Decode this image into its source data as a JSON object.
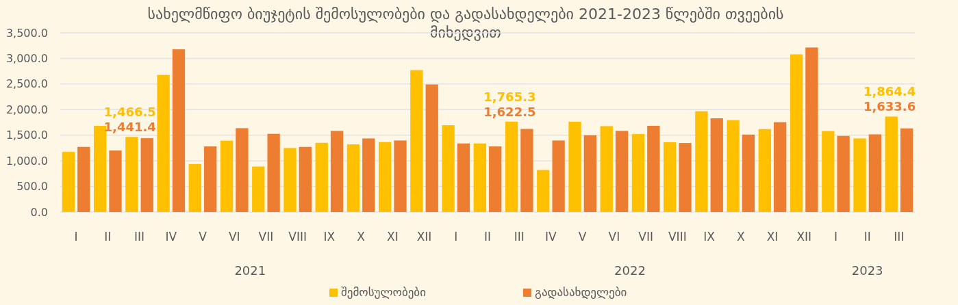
{
  "chart_data": {
    "type": "bar",
    "title": "სახელმწიფო ბიუჯეტის შემოსულობები და გადასახდელები 2021-2023 წლებში თვეების მიხედვით",
    "categories": [
      "I",
      "II",
      "III",
      "IV",
      "V",
      "VI",
      "VII",
      "VIII",
      "IX",
      "X",
      "XI",
      "XII",
      "I",
      "II",
      "III",
      "IV",
      "V",
      "VI",
      "VII",
      "VIII",
      "IX",
      "X",
      "XI",
      "XII",
      "I",
      "II",
      "III"
    ],
    "series": [
      {
        "name": "შემოსულობები",
        "color": "#ffc000",
        "values": [
          1174,
          1683,
          1466.5,
          2678,
          937,
          1393,
          888,
          1250,
          1352,
          1321,
          1366,
          2772,
          1696,
          1339,
          1765.3,
          821,
          1763,
          1678,
          1522,
          1362,
          1968,
          1794,
          1620,
          3080,
          1580,
          1437,
          1864.4
        ],
        "value_labels": [
          null,
          null,
          "1,466.5",
          null,
          null,
          null,
          null,
          null,
          null,
          null,
          null,
          null,
          null,
          null,
          "1,765.3",
          null,
          null,
          null,
          null,
          null,
          null,
          null,
          null,
          null,
          null,
          null,
          "1,864.4"
        ]
      },
      {
        "name": "გადასახდელები",
        "color": "#ed7d31",
        "values": [
          1272,
          1201,
          1441.4,
          3178,
          1281,
          1638,
          1527,
          1272,
          1584,
          1437,
          1397,
          2491,
          1339,
          1281,
          1622.5,
          1397,
          1500,
          1584,
          1683,
          1348,
          1830,
          1513,
          1754,
          3214,
          1486,
          1517,
          1633.6
        ],
        "value_labels": [
          null,
          null,
          "1,441.4",
          null,
          null,
          null,
          null,
          null,
          null,
          null,
          null,
          null,
          null,
          null,
          "1,622.5",
          null,
          null,
          null,
          null,
          null,
          null,
          null,
          null,
          null,
          null,
          null,
          "1,633.6"
        ]
      }
    ],
    "ylim": [
      0,
      3500
    ],
    "yticks": [
      {
        "value": 0,
        "label": "0.0"
      },
      {
        "value": 500,
        "label": "500.0"
      },
      {
        "value": 1000,
        "label": "1,000.0"
      },
      {
        "value": 1500,
        "label": "1,500.0"
      },
      {
        "value": 2000,
        "label": "2,000.0"
      },
      {
        "value": 2500,
        "label": "2,500.0"
      },
      {
        "value": 3000,
        "label": "3,000.0"
      },
      {
        "value": 3500,
        "label": "3,500.0"
      }
    ],
    "grid": "y",
    "legend": "bottom",
    "annotations": [
      "2021",
      "2022",
      "2023"
    ]
  }
}
